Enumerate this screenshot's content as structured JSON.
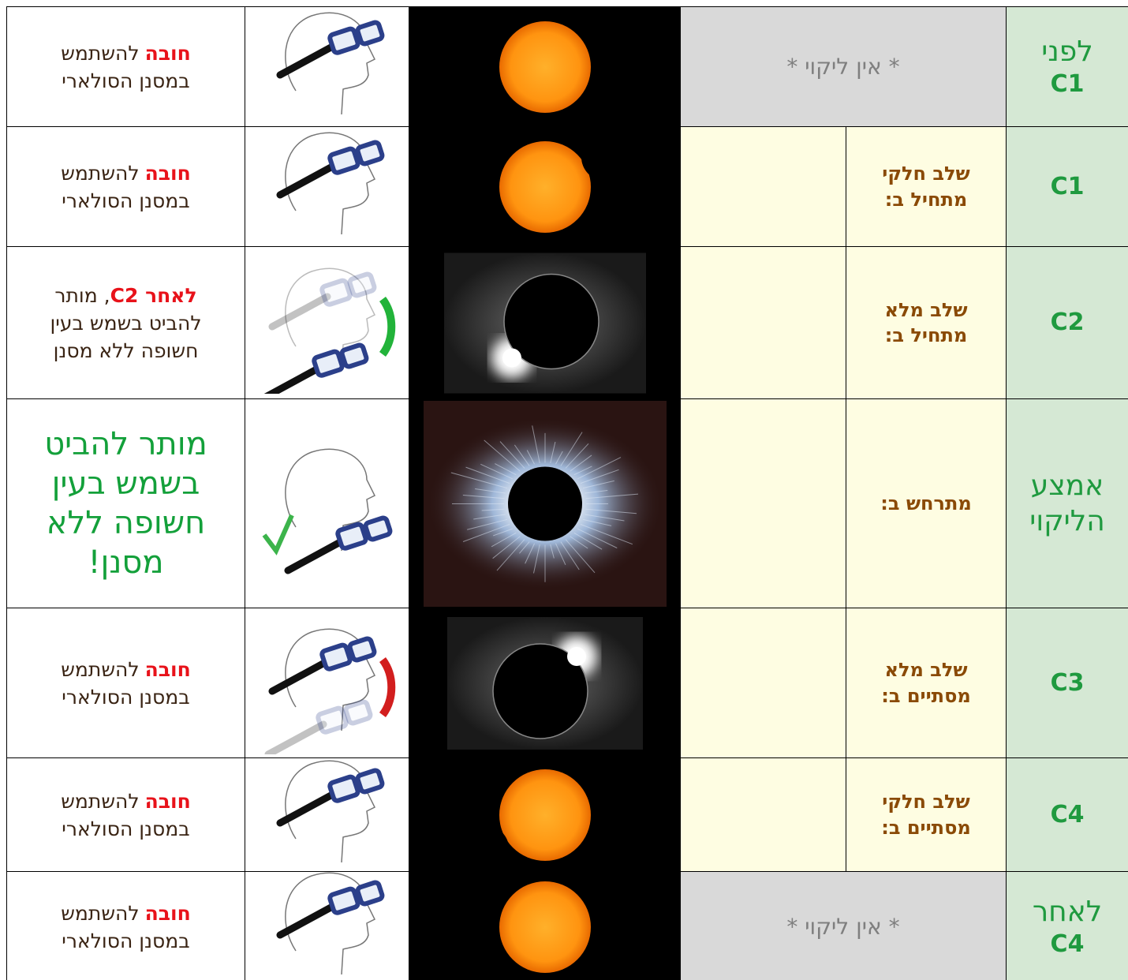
{
  "table": {
    "rows": [
      {
        "stage": [
          "לפני",
          "C1"
        ],
        "note": "* אין ליקוי *",
        "instruction": {
          "emphasis": "חובה",
          "lines": [
            "להשתמש",
            "במסנן הסולארי"
          ]
        }
      },
      {
        "stage": [
          "C1"
        ],
        "phase": [
          "שלב חלקי",
          "מתחיל ב:"
        ],
        "instruction": {
          "emphasis": "חובה",
          "lines": [
            "להשתמש",
            "במסנן הסולארי"
          ]
        }
      },
      {
        "stage": [
          "C2"
        ],
        "phase": [
          "שלב מלא",
          "מתחיל ב:"
        ],
        "instruction": {
          "emphasis": "לאחר C2",
          "lines": [
            ", מותר",
            "להביט בשמש בעין",
            "חשופה ללא מסנן"
          ]
        }
      },
      {
        "stage": [
          "אמצע",
          "הליקוי"
        ],
        "phase": [
          "מתרחש ב:"
        ],
        "instruction": {
          "lines": [
            "מותר להביט",
            "בשמש בעין",
            "חשופה ללא",
            "מסנן!"
          ]
        }
      },
      {
        "stage": [
          "C3"
        ],
        "phase": [
          "שלב מלא",
          "מסתיים ב:"
        ],
        "instruction": {
          "emphasis": "חובה",
          "lines": [
            "להשתמש",
            "במסנן הסולארי"
          ]
        }
      },
      {
        "stage": [
          "C4"
        ],
        "phase": [
          "שלב חלקי",
          "מסתיים ב:"
        ],
        "instruction": {
          "emphasis": "חובה",
          "lines": [
            "להשתמש",
            "במסנן הסולארי"
          ]
        }
      },
      {
        "stage": [
          "לאחר",
          "C4"
        ],
        "note": "* אין ליקוי *",
        "instruction": {
          "emphasis": "חובה",
          "lines": [
            "להשתמש",
            "במסנן הסולארי"
          ]
        }
      }
    ]
  }
}
